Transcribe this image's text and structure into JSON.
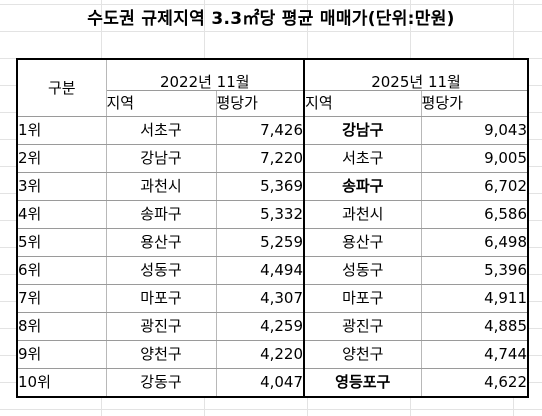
{
  "title": "수도권 규제지역 3.3㎡당 평균 매매가(단위:만원)",
  "header": {
    "group_label": "구분",
    "year_2022": "2022년 11월",
    "year_2025": "2025년 11월",
    "region_label": "지역",
    "price_label": "평당가"
  },
  "rows": [
    {
      "rank": "1위",
      "r22": "서초구",
      "p22": "7,426",
      "r25": "강남구",
      "p25": "9,043",
      "r25_bold": true
    },
    {
      "rank": "2위",
      "r22": "강남구",
      "p22": "7,220",
      "r25": "서초구",
      "p25": "9,005",
      "r25_bold": false
    },
    {
      "rank": "3위",
      "r22": "과천시",
      "p22": "5,369",
      "r25": "송파구",
      "p25": "6,702",
      "r25_bold": true
    },
    {
      "rank": "4위",
      "r22": "송파구",
      "p22": "5,332",
      "r25": "과천시",
      "p25": "6,586",
      "r25_bold": false
    },
    {
      "rank": "5위",
      "r22": "용산구",
      "p22": "5,259",
      "r25": "용산구",
      "p25": "6,498",
      "r25_bold": false
    },
    {
      "rank": "6위",
      "r22": "성동구",
      "p22": "4,494",
      "r25": "성동구",
      "p25": "5,396",
      "r25_bold": false
    },
    {
      "rank": "7위",
      "r22": "마포구",
      "p22": "4,307",
      "r25": "마포구",
      "p25": "4,911",
      "r25_bold": false
    },
    {
      "rank": "8위",
      "r22": "광진구",
      "p22": "4,259",
      "r25": "광진구",
      "p25": "4,885",
      "r25_bold": false
    },
    {
      "rank": "9위",
      "r22": "양천구",
      "p22": "4,220",
      "r25": "양천구",
      "p25": "4,744",
      "r25_bold": false
    },
    {
      "rank": "10위",
      "r22": "강동구",
      "p22": "4,047",
      "r25": "영등포구",
      "p25": "4,622",
      "r25_bold": true
    }
  ]
}
